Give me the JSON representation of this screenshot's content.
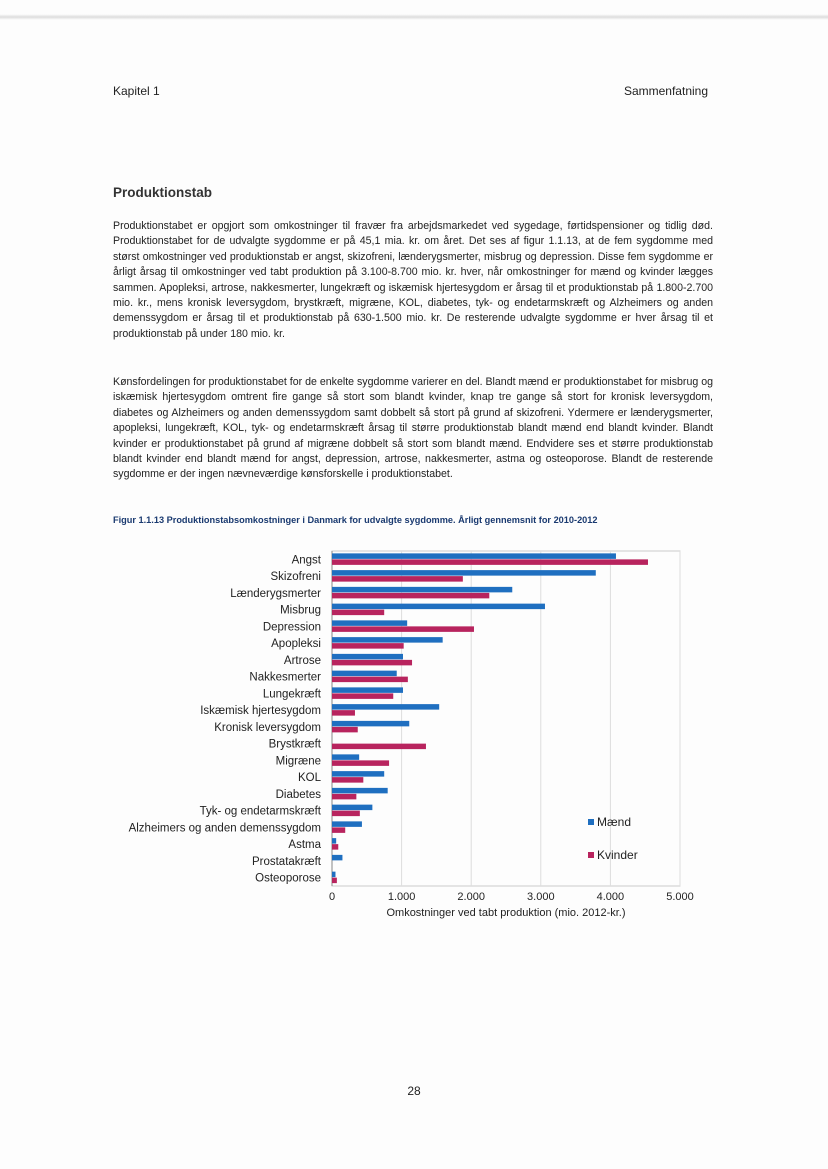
{
  "header": {
    "chapter": "Kapitel 1",
    "section": "Sammenfatning"
  },
  "section_title": "Produktionstab",
  "paragraphs": [
    "Produktionstabet er opgjort som omkostninger til fravær fra arbejdsmarkedet ved sygedage, førtidspensioner og tidlig død. Produktionstabet for de udvalgte sygdomme er på 45,1 mia. kr. om året. Det ses af figur 1.1.13, at de fem sygdomme med størst omkostninger ved produktionstab er angst, skizofreni, lænderygsmerter, misbrug og depression. Disse fem sygdomme er årligt årsag til omkostninger ved tabt produktion på 3.100-8.700 mio. kr. hver, når omkostninger for mænd og kvinder lægges sammen. Apopleksi, artrose, nakkesmerter, lungekræft og iskæmisk hjertesygdom er årsag til et produktionstab på 1.800-2.700 mio. kr., mens kronisk leversygdom, brystkræft, migræne, KOL, diabetes, tyk- og endetarmskræft og Alzheimers og anden demenssygdom er årsag til et produktionstab på 630-1.500 mio. kr. De resterende udvalgte sygdomme er hver årsag til et produktionstab på under 180 mio. kr.",
    "Kønsfordelingen for produktionstabet for de enkelte sygdomme varierer en del. Blandt mænd er produktionstabet for misbrug og iskæmisk hjertesygdom omtrent fire gange så stort som blandt kvinder, knap tre gange så stort for kronisk leversygdom, diabetes og Alzheimers og anden demenssygdom samt dobbelt så stort på grund af skizofreni. Ydermere er lænderygsmerter, apopleksi, lungekræft, KOL, tyk- og endetarmskræft årsag til større produktionstab blandt mænd end blandt kvinder. Blandt kvinder er produktionstabet på grund af migræne dobbelt så stort som blandt mænd. Endvidere ses et større produktionstab blandt kvinder end blandt mænd for angst, depression, artrose, nakkesmerter, astma og osteoporose. Blandt de resterende sygdomme er der ingen nævneværdige kønsforskelle i produktionstabet."
  ],
  "figure_caption": "Figur 1.1.13   Produktionstabsomkostninger i Danmark for udvalgte sygdomme. Årligt gennemsnit for 2010-2012",
  "page_number": "28",
  "chart_data": {
    "type": "bar",
    "orientation": "horizontal",
    "categories": [
      "Angst",
      "Skizofreni",
      "Lænderygsmerter",
      "Misbrug",
      "Depression",
      "Apopleksi",
      "Artrose",
      "Nakkesmerter",
      "Lungekræft",
      "Iskæmisk hjertesygdom",
      "Kronisk leversygdom",
      "Brystkræft",
      "Migræne",
      "KOL",
      "Diabetes",
      "Tyk- og endetarmskræft",
      "Alzheimers og anden demenssygdom",
      "Astma",
      "Prostatakræft",
      "Osteoporose"
    ],
    "series": [
      {
        "name": "Mænd",
        "color": "#1f6fc0",
        "values": [
          4080,
          3790,
          2590,
          3060,
          1080,
          1590,
          1020,
          930,
          1020,
          1540,
          1110,
          0,
          390,
          750,
          800,
          580,
          430,
          60,
          150,
          50
        ]
      },
      {
        "name": "Kvinder",
        "color": "#b8245e",
        "values": [
          4540,
          1880,
          2260,
          750,
          2040,
          1030,
          1150,
          1090,
          880,
          330,
          370,
          1350,
          820,
          450,
          350,
          400,
          190,
          90,
          0,
          70
        ]
      }
    ],
    "xlabel": "Omkostninger ved tabt produktion (mio. 2012-kr.)",
    "xlim": [
      0,
      5000
    ],
    "xticks": [
      0,
      1000,
      2000,
      3000,
      4000,
      5000
    ],
    "xtick_labels": [
      "0",
      "1.000",
      "2.000",
      "3.000",
      "4.000",
      "5.000"
    ],
    "grid": true,
    "legend": "right"
  }
}
